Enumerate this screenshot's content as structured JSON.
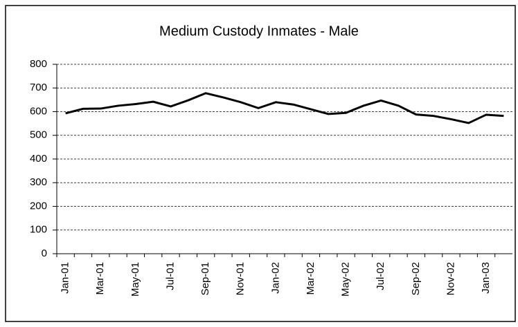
{
  "chart_data": {
    "type": "line",
    "title": "Medium Custody Inmates - Male",
    "categories": [
      "Jan-01",
      null,
      "Mar-01",
      null,
      "May-01",
      null,
      "Jul-01",
      null,
      "Sep-01",
      null,
      "Nov-01",
      null,
      "Jan-02",
      null,
      "Mar-02",
      null,
      "May-02",
      null,
      "Jul-02",
      null,
      "Sep-02",
      null,
      "Nov-02",
      null,
      "Jan-03",
      null
    ],
    "series": [
      {
        "name": "Male",
        "color": "#000000",
        "values": [
          593,
          612,
          613,
          625,
          632,
          642,
          622,
          648,
          678,
          660,
          640,
          615,
          640,
          630,
          610,
          590,
          595,
          625,
          647,
          625,
          588,
          582,
          568,
          552,
          587,
          582
        ]
      }
    ],
    "ylim": [
      0,
      800
    ],
    "yticks": [
      0,
      100,
      200,
      300,
      400,
      500,
      600,
      700,
      800
    ],
    "grid": true,
    "legend": false
  }
}
